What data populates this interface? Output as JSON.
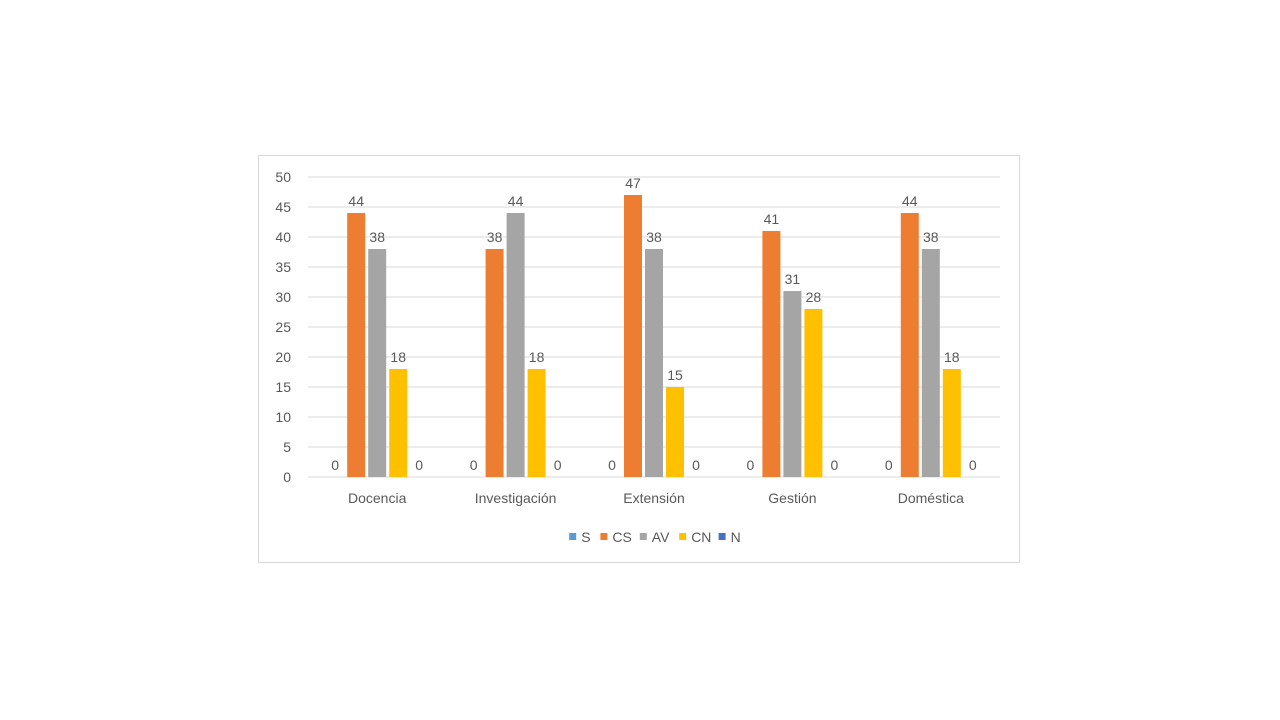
{
  "chart_data": {
    "type": "bar",
    "categories": [
      "Docencia",
      "Investigación",
      "Extensión",
      "Gestión",
      "Doméstica"
    ],
    "series": [
      {
        "name": "S",
        "color": "#5b9bd5",
        "values": [
          0,
          0,
          0,
          0,
          0
        ]
      },
      {
        "name": "CS",
        "color": "#ed7d31",
        "values": [
          44,
          38,
          47,
          41,
          44
        ]
      },
      {
        "name": "AV",
        "color": "#a5a5a5",
        "values": [
          38,
          44,
          38,
          31,
          38
        ]
      },
      {
        "name": "CN",
        "color": "#ffc000",
        "values": [
          18,
          18,
          15,
          28,
          18
        ]
      },
      {
        "name": "N",
        "color": "#4472c4",
        "values": [
          0,
          0,
          0,
          0,
          0
        ]
      }
    ],
    "ylim": [
      0,
      50
    ],
    "yticks": [
      0,
      5,
      10,
      15,
      20,
      25,
      30,
      35,
      40,
      45,
      50
    ],
    "grid": true,
    "legend_position": "bottom",
    "data_labels": true,
    "gridline_color": "#d9d9d9"
  }
}
